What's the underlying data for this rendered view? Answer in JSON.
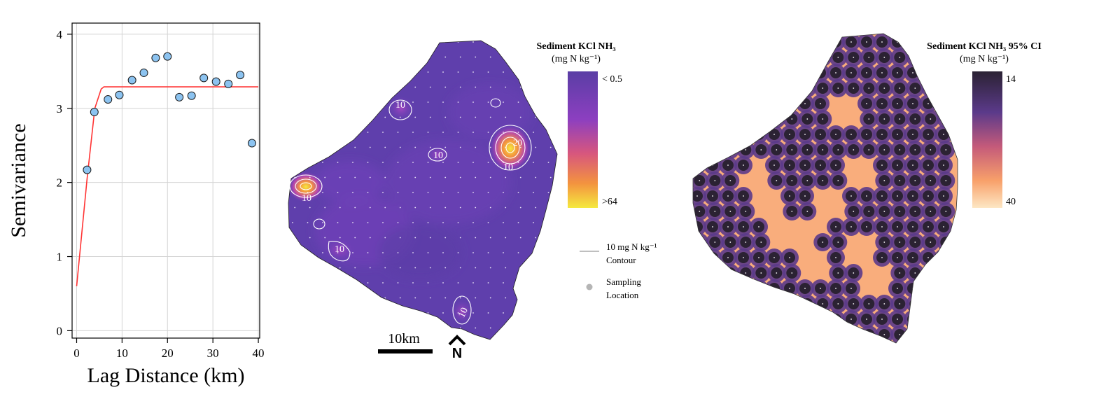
{
  "variogram": {
    "ylabel": "Semivariance",
    "xlabel": "Lag Distance (km)",
    "chart_data": {
      "type": "scatter",
      "x": [
        2.3,
        3.9,
        6.9,
        9.4,
        12.2,
        14.8,
        17.4,
        20.0,
        22.6,
        25.3,
        28.0,
        30.7,
        33.4,
        36.0,
        38.6
      ],
      "y": [
        2.17,
        2.95,
        3.12,
        3.18,
        3.38,
        3.48,
        3.68,
        3.7,
        3.15,
        3.17,
        3.41,
        3.36,
        3.33,
        3.45,
        2.53
      ],
      "fit_line": {
        "x": [
          0,
          2.3,
          4.0,
          5.4,
          6.0,
          40
        ],
        "y": [
          0.6,
          2.05,
          3.0,
          3.26,
          3.29,
          3.29
        ],
        "color": "#ff3333"
      },
      "xlim": [
        -1,
        40.3
      ],
      "ylim": [
        -0.1,
        4.15
      ],
      "xticks": [
        0,
        10,
        20,
        30,
        40
      ],
      "yticks": [
        0,
        1,
        2,
        3,
        4
      ],
      "grid": true,
      "marker_color": "#8cc3f0"
    }
  },
  "map_estimate": {
    "legend_title_1": "Sediment KCl NH₃",
    "legend_title_2": "(mg N kg⁻¹)",
    "scale_low": "< 0.5",
    "scale_high": ">64",
    "contour_label": "10 mg N kg⁻¹",
    "contour_label_2": "Contour",
    "sampling_label": "Sampling",
    "sampling_label_2": "Location",
    "scalebar_label": "10km",
    "north_label": "N",
    "contour_value": "10",
    "hotspot_value": "20",
    "colors": [
      "#5a3ea5",
      "#6a3fb5",
      "#9a45c0",
      "#d7567e",
      "#f3933f",
      "#f5e93f"
    ]
  },
  "map_ci": {
    "legend_title_1": "Sediment KCl NH₃ 95% CI",
    "legend_title_2": "(mg N kg⁻¹)",
    "scale_top": "14",
    "scale_bottom": "40",
    "colors": [
      "#2b2233",
      "#5b3a8a",
      "#c45a7a",
      "#f8a06a",
      "#fde7c4"
    ]
  }
}
